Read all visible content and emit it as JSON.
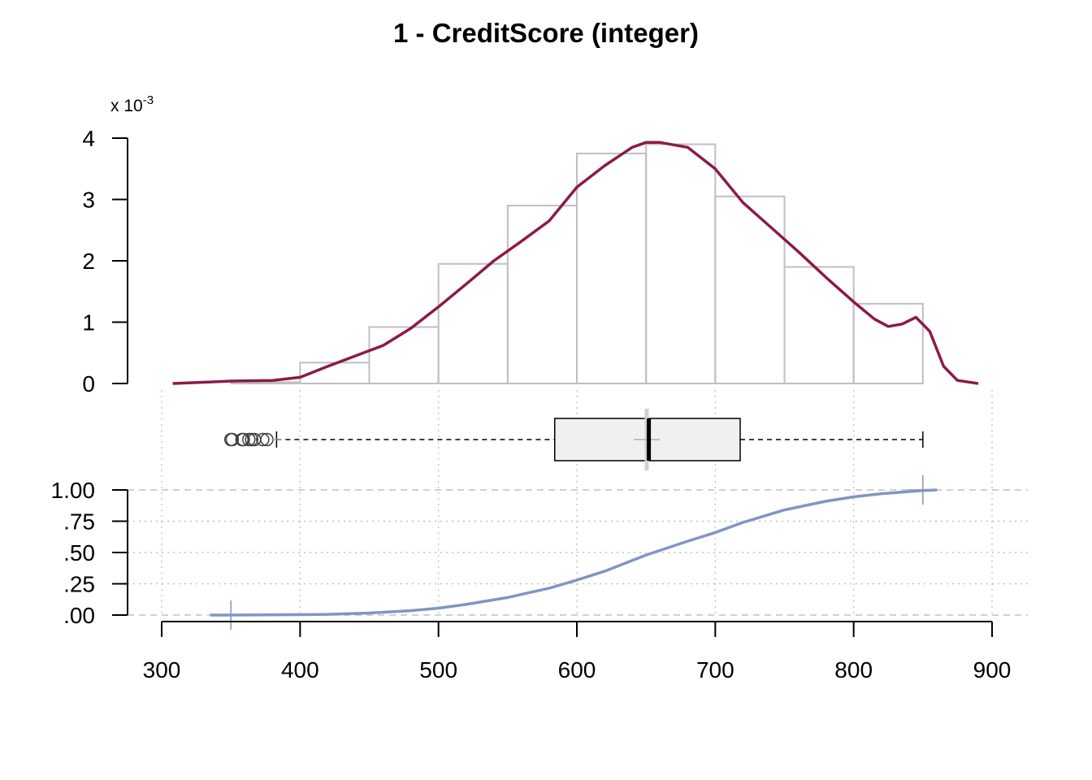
{
  "chart_data": {
    "title": "1 - CreditScore (integer)",
    "type": "histogram+density+boxplot+ecdf",
    "x_axis": {
      "range": [
        300,
        900
      ],
      "ticks": [
        300,
        400,
        500,
        600,
        700,
        800,
        900
      ],
      "tick_labels": [
        "300",
        "400",
        "500",
        "600",
        "700",
        "800",
        "900"
      ]
    },
    "histogram": {
      "y_multiplier_label": "x 10",
      "y_multiplier_exponent": "-3",
      "ylim": [
        0,
        4
      ],
      "y_ticks": [
        0,
        1,
        2,
        3,
        4
      ],
      "y_tick_labels": [
        "0",
        "1",
        "2",
        "3",
        "4"
      ],
      "bins": [
        {
          "x0": 350,
          "x1": 400,
          "density": 0.02
        },
        {
          "x0": 400,
          "x1": 450,
          "density": 0.34
        },
        {
          "x0": 450,
          "x1": 500,
          "density": 0.92
        },
        {
          "x0": 500,
          "x1": 550,
          "density": 1.95
        },
        {
          "x0": 550,
          "x1": 600,
          "density": 2.9
        },
        {
          "x0": 600,
          "x1": 650,
          "density": 3.75
        },
        {
          "x0": 650,
          "x1": 700,
          "density": 3.9
        },
        {
          "x0": 700,
          "x1": 750,
          "density": 3.05
        },
        {
          "x0": 750,
          "x1": 800,
          "density": 1.9
        },
        {
          "x0": 800,
          "x1": 850,
          "density": 1.3
        }
      ],
      "bar_stroke": "#bfbfbf",
      "density_color": "#8b1a4a",
      "density": {
        "x": [
          308,
          330,
          350,
          380,
          400,
          420,
          440,
          460,
          480,
          500,
          520,
          540,
          560,
          580,
          600,
          620,
          640,
          650,
          660,
          680,
          700,
          720,
          740,
          760,
          780,
          800,
          815,
          825,
          835,
          845,
          855,
          865,
          875,
          890
        ],
        "y": [
          0.0,
          0.02,
          0.04,
          0.05,
          0.1,
          0.28,
          0.45,
          0.62,
          0.9,
          1.25,
          1.62,
          2.0,
          2.32,
          2.65,
          3.2,
          3.55,
          3.85,
          3.93,
          3.93,
          3.85,
          3.5,
          2.95,
          2.55,
          2.15,
          1.73,
          1.33,
          1.05,
          0.93,
          0.97,
          1.08,
          0.85,
          0.28,
          0.05,
          0.0
        ]
      }
    },
    "boxplot": {
      "min_whisker": 383,
      "q1": 584,
      "median": 652,
      "mean": 650.5,
      "q3": 718,
      "max_whisker": 850,
      "outliers": [
        350,
        351,
        358,
        359,
        363,
        365,
        367,
        373,
        376
      ],
      "box_fill": "#f0f0f0"
    },
    "ecdf": {
      "ylim": [
        0,
        1
      ],
      "y_ticks": [
        0,
        0.25,
        0.5,
        0.75,
        1.0
      ],
      "y_tick_labels": [
        ".00",
        ".25",
        ".50",
        ".75",
        "1.00"
      ],
      "line_color": "#8096c2",
      "x": [
        335,
        350,
        400,
        420,
        450,
        480,
        500,
        520,
        550,
        580,
        600,
        620,
        650,
        680,
        700,
        720,
        750,
        780,
        800,
        820,
        850,
        860
      ],
      "y": [
        0.0,
        0.0,
        0.003,
        0.006,
        0.016,
        0.035,
        0.055,
        0.085,
        0.14,
        0.215,
        0.28,
        0.35,
        0.48,
        0.59,
        0.66,
        0.74,
        0.84,
        0.91,
        0.945,
        0.97,
        0.995,
        1.0
      ],
      "min_marker": 350,
      "max_marker": 850
    }
  }
}
